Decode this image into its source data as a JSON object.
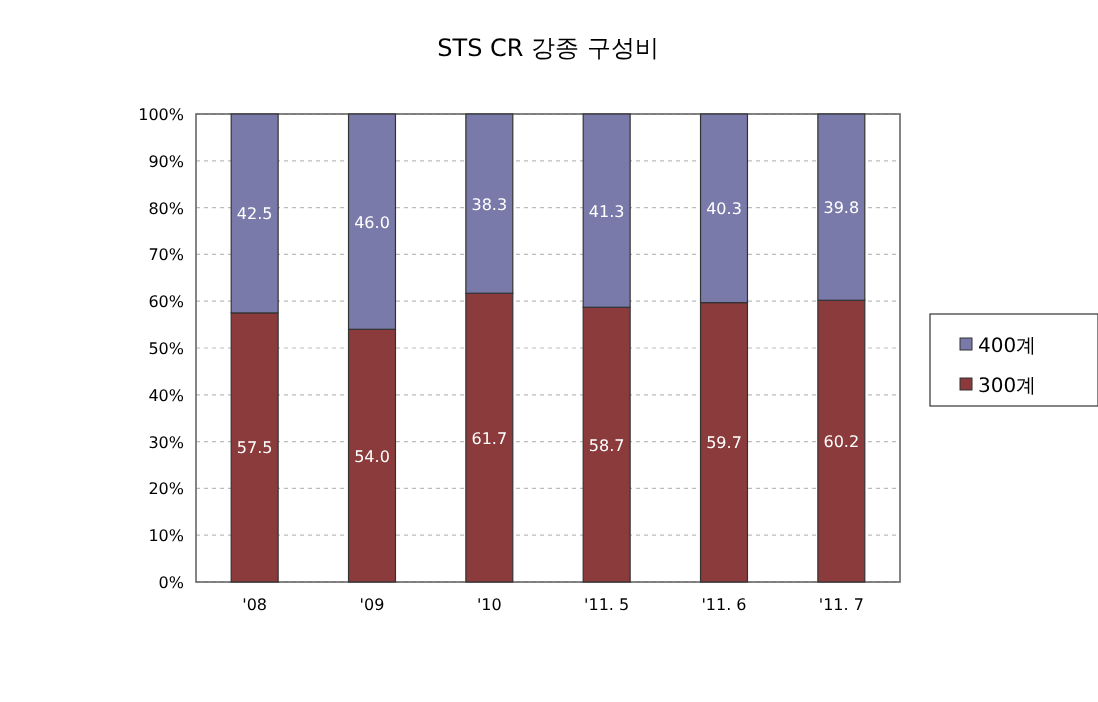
{
  "chart_data": {
    "type": "bar",
    "title": "STS CR 강종 구성비",
    "categories": [
      "'08",
      "'09",
      "'10",
      "'11. 5",
      "'11. 6",
      "'11. 7"
    ],
    "series": [
      {
        "name": "300계",
        "color": "#8b3b3b",
        "values": [
          57.5,
          54.0,
          61.7,
          58.7,
          59.7,
          60.2
        ],
        "value_labels": [
          "57.5",
          "54.0",
          "61.7",
          "58.7",
          "59.7",
          "60.2"
        ]
      },
      {
        "name": "400계",
        "color": "#7a7aaa",
        "values": [
          42.5,
          46.0,
          38.3,
          41.3,
          40.3,
          39.8
        ],
        "value_labels": [
          "42.5",
          "46.0",
          "38.3",
          "41.3",
          "40.3",
          "39.8"
        ]
      }
    ],
    "stacked": true,
    "ylim": [
      0,
      100
    ],
    "yticks": [
      {
        "value": 0,
        "label": "0%"
      },
      {
        "value": 10,
        "label": "10%"
      },
      {
        "value": 20,
        "label": "20%"
      },
      {
        "value": 30,
        "label": "30%"
      },
      {
        "value": 40,
        "label": "40%"
      },
      {
        "value": 50,
        "label": "50%"
      },
      {
        "value": 60,
        "label": "60%"
      },
      {
        "value": 70,
        "label": "70%"
      },
      {
        "value": 80,
        "label": "80%"
      },
      {
        "value": 90,
        "label": "90%"
      },
      {
        "value": 100,
        "label": "100%"
      }
    ],
    "grid": "y",
    "legend": "right"
  }
}
